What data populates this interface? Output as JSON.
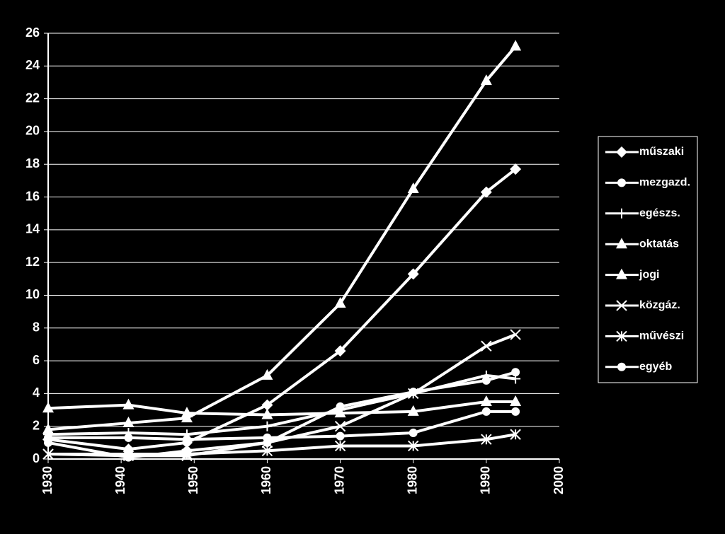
{
  "chart_data": {
    "type": "line",
    "x": [
      1930,
      1941,
      1949,
      1960,
      1970,
      1980,
      1990,
      1994
    ],
    "xlim": [
      1930,
      2000
    ],
    "xticks": [
      1930,
      1940,
      1950,
      1960,
      1970,
      1980,
      1990,
      2000
    ],
    "ylim": [
      0,
      26
    ],
    "yticks": [
      0,
      2,
      4,
      6,
      8,
      10,
      12,
      14,
      16,
      18,
      20,
      22,
      24,
      26
    ],
    "grid": true,
    "legend": "right",
    "series": [
      {
        "name": "műszaki",
        "color": "#ffffff",
        "marker": "diamond",
        "values": [
          1.2,
          0.6,
          1.0,
          3.3,
          6.6,
          11.3,
          16.3,
          17.7
        ]
      },
      {
        "name": "mezgazd.",
        "color": "#ffffff",
        "marker": "circle",
        "values": [
          1.0,
          0.1,
          0.5,
          1.0,
          3.2,
          4.1,
          4.8,
          5.3
        ]
      },
      {
        "name": "egészs.",
        "color": "#ffffff",
        "marker": "plus",
        "values": [
          1.5,
          1.6,
          1.5,
          2.0,
          3.0,
          4.0,
          5.1,
          4.9
        ]
      },
      {
        "name": "oktatás",
        "color": "#ffffff",
        "marker": "triangle",
        "values": [
          1.8,
          2.2,
          2.5,
          5.1,
          9.5,
          16.5,
          23.1,
          25.2
        ]
      },
      {
        "name": "jogi",
        "color": "#ffffff",
        "marker": "triangle",
        "values": [
          3.1,
          3.3,
          2.8,
          2.7,
          2.8,
          2.9,
          3.5,
          3.5
        ]
      },
      {
        "name": "közgáz.",
        "color": "#ffffff",
        "marker": "x",
        "values": [
          0.3,
          0.2,
          0.2,
          1.0,
          2.0,
          4.0,
          6.9,
          7.6
        ]
      },
      {
        "name": "művészi",
        "color": "#ffffff",
        "marker": "asterisk",
        "values": [
          0.3,
          0.3,
          0.3,
          0.5,
          0.8,
          0.8,
          1.2,
          1.5
        ]
      },
      {
        "name": "egyéb",
        "color": "#ffffff",
        "marker": "circle",
        "values": [
          1.3,
          1.3,
          1.2,
          1.3,
          1.4,
          1.6,
          2.9,
          2.9
        ]
      }
    ]
  }
}
